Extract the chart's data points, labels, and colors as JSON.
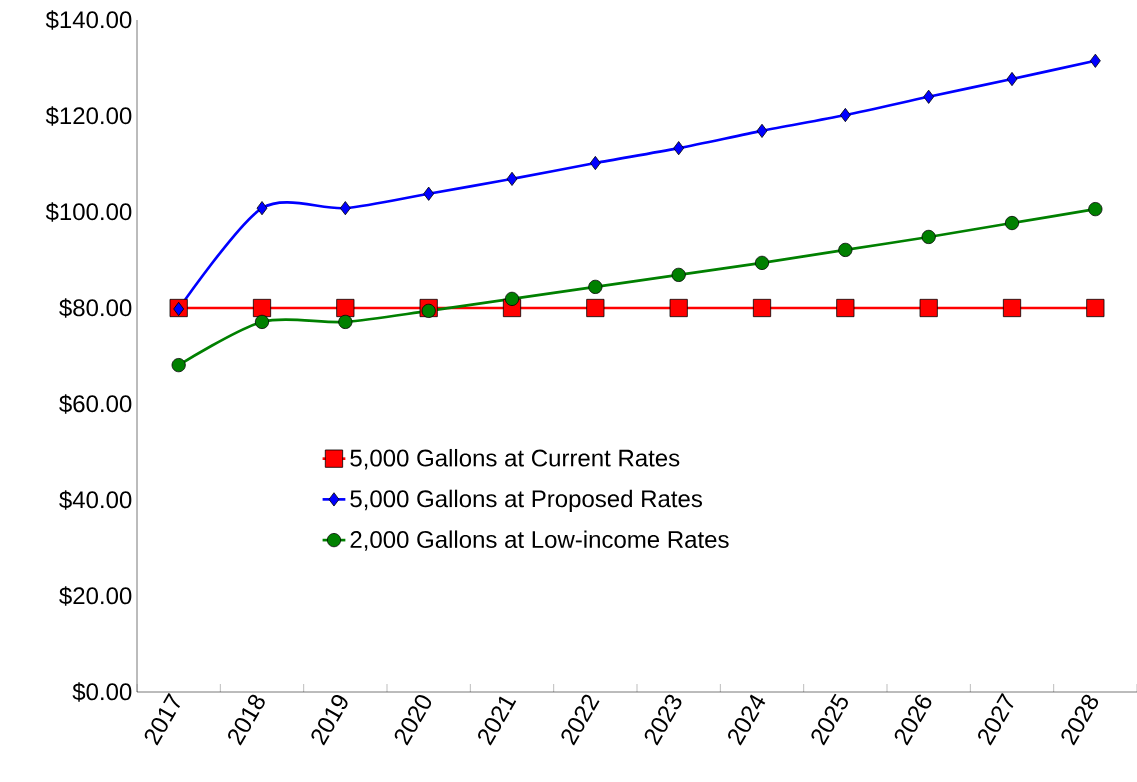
{
  "chart_data": {
    "type": "line",
    "categories": [
      "2017",
      "2018",
      "2019",
      "2020",
      "2021",
      "2022",
      "2023",
      "2024",
      "2025",
      "2026",
      "2027",
      "2028"
    ],
    "series": [
      {
        "name": "5,000 Gallons at Current Rates",
        "color": "#ff0000",
        "marker": "square",
        "values": [
          80,
          80,
          80,
          80,
          80,
          80,
          80,
          80,
          80,
          80,
          80,
          80
        ]
      },
      {
        "name": "5,000 Gallons at Proposed Rates",
        "color": "#0000ff",
        "marker": "diamond",
        "values": [
          79.8,
          100.8,
          100.8,
          103.8,
          106.9,
          110.2,
          113.3,
          116.9,
          120.2,
          124,
          127.7,
          131.5
        ]
      },
      {
        "name": "2,000 Gallons at Low-income Rates",
        "color": "#008000",
        "marker": "circle",
        "values": [
          68.1,
          77.1,
          77.1,
          79.4,
          81.9,
          84.4,
          86.9,
          89.4,
          92.1,
          94.8,
          97.7,
          100.6
        ]
      }
    ],
    "ylim": [
      0,
      140
    ],
    "yticks": [
      {
        "value": 0,
        "label": "$0.00"
      },
      {
        "value": 20,
        "label": "$20.00"
      },
      {
        "value": 40,
        "label": "$40.00"
      },
      {
        "value": 60,
        "label": "$60.00"
      },
      {
        "value": 80,
        "label": "$80.00"
      },
      {
        "value": 100,
        "label": "$100.00"
      },
      {
        "value": 120,
        "label": "$120.00"
      },
      {
        "value": 140,
        "label": "$140.00"
      }
    ],
    "line_style": "solid",
    "grid": false,
    "legend": "center"
  }
}
